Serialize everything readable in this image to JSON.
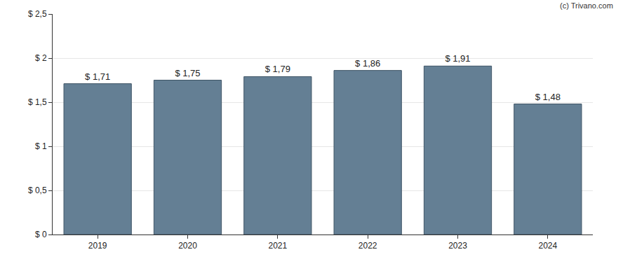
{
  "chart_data": {
    "type": "bar",
    "annotations": [
      "(c) Trivano.com"
    ],
    "categories": [
      "2019",
      "2020",
      "2021",
      "2022",
      "2023",
      "2024"
    ],
    "values": [
      1.71,
      1.75,
      1.79,
      1.86,
      1.91,
      1.48
    ],
    "value_labels": [
      "$ 1,71",
      "$ 1,75",
      "$ 1,79",
      "$ 1,86",
      "$ 1,91",
      "$ 1,48"
    ],
    "data_labels": true,
    "color": "#647f94",
    "ylim": [
      0,
      2.5
    ],
    "yticks": [
      {
        "value": 0,
        "label": "$ 0"
      },
      {
        "value": 0.5,
        "label": "$ 0,5"
      },
      {
        "value": 1,
        "label": "$ 1"
      },
      {
        "value": 1.5,
        "label": "$ 1,5"
      },
      {
        "value": 2,
        "label": "$ 2"
      },
      {
        "value": 2.5,
        "label": "$ 2,5"
      }
    ],
    "grid": true
  }
}
